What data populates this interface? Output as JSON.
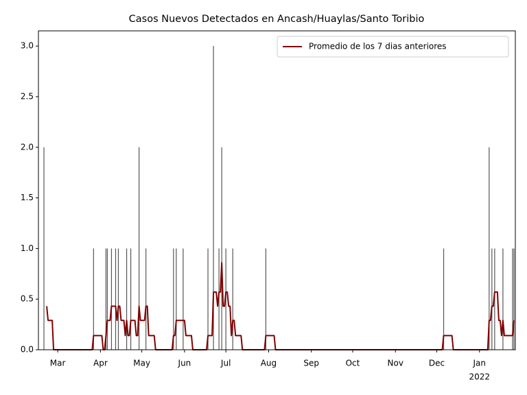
{
  "chart_data": {
    "type": "bar-line",
    "title": "Casos Nuevos Detectados en Ancash/Huaylas/Santo Toribio",
    "xlim": [
      0,
      346
    ],
    "xticks": [
      {
        "value": 14,
        "label": "Mar"
      },
      {
        "value": 45,
        "label": "Apr"
      },
      {
        "value": 75,
        "label": "May"
      },
      {
        "value": 106,
        "label": "Jun"
      },
      {
        "value": 136,
        "label": "Jul"
      },
      {
        "value": 167,
        "label": "Aug"
      },
      {
        "value": 198,
        "label": "Sep"
      },
      {
        "value": 228,
        "label": "Oct"
      },
      {
        "value": 259,
        "label": "Nov"
      },
      {
        "value": 289,
        "label": "Dec"
      },
      {
        "value": 320,
        "label": "Jan"
      }
    ],
    "xtick_year": "2022",
    "ylim": [
      0,
      3.15
    ],
    "yticks": [
      {
        "value": 0,
        "label": "0.0"
      },
      {
        "value": 0.5,
        "label": "0.5"
      },
      {
        "value": 1,
        "label": "1.0"
      },
      {
        "value": 1.5,
        "label": "1.5"
      },
      {
        "value": 2,
        "label": "2.0"
      },
      {
        "value": 2.5,
        "label": "2.5"
      },
      {
        "value": 3,
        "label": "3.0"
      }
    ],
    "bars": {
      "color": "#555555",
      "x": [
        4,
        40,
        49,
        50,
        53,
        56,
        58,
        64,
        67,
        73,
        78,
        98,
        100,
        105,
        123,
        127,
        131,
        133,
        136,
        141,
        165,
        294,
        327,
        329,
        331,
        337,
        344,
        345
      ],
      "values": [
        2,
        1,
        1,
        1,
        1,
        1,
        1,
        1,
        1,
        2,
        1,
        1,
        1,
        1,
        1,
        3,
        1,
        2,
        1,
        1,
        1,
        1,
        2,
        1,
        1,
        1,
        1,
        1
      ]
    },
    "series": [
      {
        "name": "Promedio de los 7 dias anteriores",
        "color": "#800000",
        "x": [
          6,
          7,
          10,
          11,
          39,
          40,
          46,
          47,
          48,
          49,
          50,
          52,
          53,
          56,
          57,
          58,
          59,
          60,
          62,
          63,
          64,
          65,
          66,
          67,
          70,
          71,
          72,
          73,
          74,
          77,
          78,
          79,
          80,
          84,
          85,
          97,
          98,
          99,
          100,
          106,
          107,
          111,
          112,
          122,
          123,
          126,
          127,
          129,
          130,
          131,
          132,
          133,
          134,
          135,
          136,
          137,
          138,
          139,
          140,
          141,
          142,
          143,
          147,
          148,
          164,
          165,
          171,
          172,
          293,
          294,
          300,
          301,
          326,
          327,
          328,
          329,
          330,
          331,
          333,
          334,
          335,
          336,
          337,
          338,
          344,
          345
        ],
        "values": [
          0.43,
          0.29,
          0.29,
          0,
          0,
          0.14,
          0.14,
          0,
          0,
          0.14,
          0.29,
          0.29,
          0.43,
          0.43,
          0.29,
          0.43,
          0.43,
          0.29,
          0.29,
          0.14,
          0.29,
          0.14,
          0.14,
          0.29,
          0.29,
          0.14,
          0.14,
          0.43,
          0.29,
          0.29,
          0.43,
          0.43,
          0.14,
          0.14,
          0,
          0,
          0.14,
          0.14,
          0.29,
          0.29,
          0.14,
          0.14,
          0,
          0,
          0.14,
          0.14,
          0.57,
          0.57,
          0.43,
          0.57,
          0.57,
          0.86,
          0.43,
          0.43,
          0.57,
          0.57,
          0.43,
          0.43,
          0.14,
          0.29,
          0.29,
          0.14,
          0.14,
          0,
          0,
          0.14,
          0.14,
          0,
          0,
          0.14,
          0.14,
          0,
          0,
          0.29,
          0.29,
          0.43,
          0.43,
          0.57,
          0.57,
          0.29,
          0.29,
          0.14,
          0.29,
          0.14,
          0.14,
          0.29
        ]
      }
    ],
    "legend": "upper right"
  }
}
